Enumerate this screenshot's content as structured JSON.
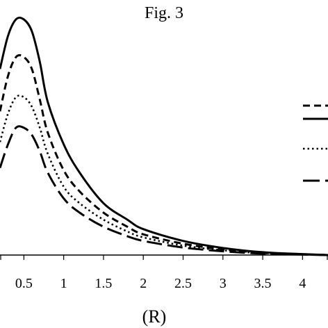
{
  "chart_data": {
    "type": "line",
    "title": "Fig. 3",
    "xlabel": "(R)",
    "ylabel": "",
    "xlim": [
      0.2,
      4.32
    ],
    "ylim": [
      0,
      1
    ],
    "x_ticks": [
      "0.5",
      "1",
      "1.5",
      "2",
      "2.5",
      "3",
      "3.5",
      "4"
    ],
    "grid": false,
    "legend": "right",
    "series": [
      {
        "style": "dashed",
        "x": [
          0.2,
          0.3,
          0.4,
          0.5,
          0.6,
          0.7,
          0.8,
          1.0,
          1.2,
          1.5,
          1.8,
          2.0,
          2.5,
          3.0,
          3.5,
          4.0,
          4.32
        ],
        "y": [
          0.61,
          0.76,
          0.84,
          0.84,
          0.79,
          0.66,
          0.52,
          0.36,
          0.27,
          0.18,
          0.12,
          0.088,
          0.048,
          0.024,
          0.01,
          0.003,
          0.0
        ]
      },
      {
        "style": "solid",
        "x": [
          0.2,
          0.3,
          0.4,
          0.5,
          0.6,
          0.7,
          0.8,
          1.0,
          1.2,
          1.5,
          1.8,
          2.0,
          2.5,
          3.0,
          3.5,
          4.0,
          4.32
        ],
        "y": [
          0.79,
          0.93,
          1.0,
          1.0,
          0.95,
          0.82,
          0.65,
          0.47,
          0.35,
          0.22,
          0.15,
          0.11,
          0.06,
          0.03,
          0.012,
          0.004,
          0.0
        ]
      },
      {
        "style": "dotted",
        "x": [
          0.2,
          0.3,
          0.4,
          0.5,
          0.6,
          0.7,
          0.8,
          1.0,
          1.2,
          1.5,
          1.8,
          2.0,
          2.5,
          3.0,
          3.5,
          4.0,
          4.32
        ],
        "y": [
          0.48,
          0.6,
          0.67,
          0.67,
          0.63,
          0.54,
          0.43,
          0.29,
          0.22,
          0.15,
          0.1,
          0.075,
          0.04,
          0.02,
          0.008,
          0.002,
          0.0
        ]
      },
      {
        "style": "long-dash",
        "x": [
          0.2,
          0.3,
          0.4,
          0.5,
          0.6,
          0.7,
          0.8,
          1.0,
          1.2,
          1.5,
          1.8,
          2.0,
          2.5,
          3.0,
          3.5,
          4.0,
          4.32
        ],
        "y": [
          0.37,
          0.47,
          0.54,
          0.54,
          0.51,
          0.44,
          0.35,
          0.24,
          0.18,
          0.12,
          0.08,
          0.06,
          0.032,
          0.016,
          0.006,
          0.002,
          0.0
        ]
      }
    ]
  }
}
